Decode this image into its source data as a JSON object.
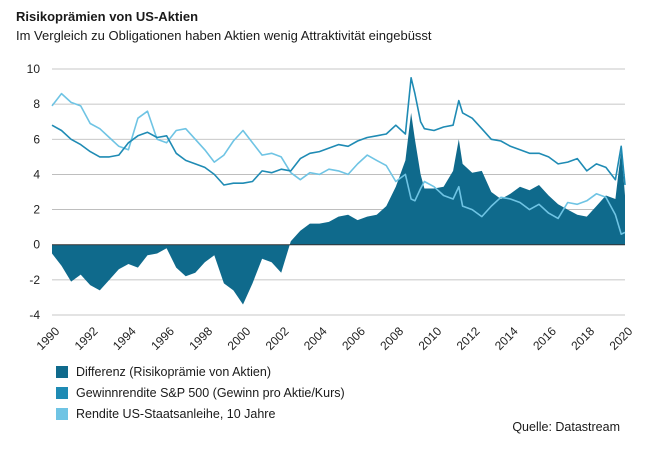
{
  "chart_data": {
    "type": "line",
    "title": "Risikoprämien von US-Aktien",
    "subtitle": "Im Vergleich zu Obligationen haben Aktien wenig Attraktivität eingebüsst",
    "xlim": [
      1990,
      2020
    ],
    "ylim": [
      -4,
      10
    ],
    "x_ticks": [
      "1990",
      "1992",
      "1994",
      "1996",
      "1998",
      "2000",
      "2002",
      "2004",
      "2006",
      "2008",
      "2010",
      "2012",
      "2014",
      "2016",
      "2018",
      "2020"
    ],
    "y_ticks": [
      "-4",
      "-2",
      "0",
      "2",
      "4",
      "6",
      "8",
      "10"
    ],
    "grid": true,
    "legend_position": "bottom-left",
    "colors": {
      "differenz": "#0f6a8c",
      "gewinnrendite": "#1f8bb4",
      "rendite": "#6fc4e4"
    },
    "x": [
      1990.0,
      1990.5,
      1991.0,
      1991.5,
      1992.0,
      1992.5,
      1993.0,
      1993.5,
      1994.0,
      1994.5,
      1995.0,
      1995.5,
      1996.0,
      1996.5,
      1997.0,
      1997.5,
      1998.0,
      1998.5,
      1999.0,
      1999.5,
      2000.0,
      2000.5,
      2001.0,
      2001.5,
      2002.0,
      2002.5,
      2003.0,
      2003.5,
      2004.0,
      2004.5,
      2005.0,
      2005.5,
      2006.0,
      2006.5,
      2007.0,
      2007.5,
      2008.0,
      2008.5,
      2008.8,
      2009.0,
      2009.3,
      2009.5,
      2010.0,
      2010.5,
      2011.0,
      2011.3,
      2011.5,
      2012.0,
      2012.5,
      2013.0,
      2013.5,
      2014.0,
      2014.5,
      2015.0,
      2015.5,
      2016.0,
      2016.5,
      2017.0,
      2017.5,
      2018.0,
      2018.5,
      2019.0,
      2019.5,
      2019.8,
      2020.0
    ],
    "series": [
      {
        "name": "Differenz (Risikoprämie von Aktien)",
        "values": [
          -0.5,
          -1.2,
          -2.1,
          -1.7,
          -2.3,
          -2.6,
          -2.0,
          -1.4,
          -1.1,
          -1.3,
          -0.6,
          -0.5,
          -0.2,
          -1.3,
          -1.8,
          -1.6,
          -1.0,
          -0.6,
          -2.2,
          -2.6,
          -3.4,
          -2.2,
          -0.8,
          -1.0,
          -1.6,
          0.2,
          0.8,
          1.2,
          1.2,
          1.3,
          1.6,
          1.7,
          1.4,
          1.6,
          1.7,
          2.2,
          3.3,
          4.8,
          7.5,
          6.0,
          4.0,
          3.2,
          3.2,
          3.3,
          4.2,
          6.0,
          4.6,
          4.1,
          4.2,
          3.0,
          2.6,
          2.9,
          3.3,
          3.1,
          3.4,
          2.8,
          2.3,
          2.0,
          1.7,
          1.6,
          2.2,
          2.8,
          2.6,
          5.4,
          2.8
        ]
      },
      {
        "name": "Gewinnrendite S&P 500 (Gewinn pro Aktie/Kurs)",
        "values": [
          6.8,
          6.5,
          6.0,
          5.7,
          5.3,
          5.0,
          5.0,
          5.1,
          5.8,
          6.2,
          6.4,
          6.1,
          6.2,
          5.2,
          4.8,
          4.6,
          4.4,
          4.0,
          3.4,
          3.5,
          3.5,
          3.6,
          4.2,
          4.1,
          4.3,
          4.2,
          4.9,
          5.2,
          5.3,
          5.5,
          5.7,
          5.6,
          5.9,
          6.1,
          6.2,
          6.3,
          6.8,
          6.3,
          9.5,
          8.6,
          7.0,
          6.6,
          6.5,
          6.7,
          6.8,
          8.2,
          7.5,
          7.2,
          6.6,
          6.0,
          5.9,
          5.6,
          5.4,
          5.2,
          5.2,
          5.0,
          4.6,
          4.7,
          4.9,
          4.2,
          4.6,
          4.4,
          3.7,
          5.6,
          3.4
        ]
      },
      {
        "name": "Rendite US-Staatsanleihe, 10 Jahre",
        "values": [
          7.9,
          8.6,
          8.1,
          7.9,
          6.9,
          6.6,
          6.1,
          5.6,
          5.4,
          7.2,
          7.6,
          6.0,
          5.8,
          6.5,
          6.6,
          6.0,
          5.4,
          4.7,
          5.1,
          5.9,
          6.5,
          5.8,
          5.1,
          5.2,
          5.0,
          4.1,
          3.7,
          4.1,
          4.0,
          4.3,
          4.2,
          4.0,
          4.6,
          5.1,
          4.8,
          4.5,
          3.6,
          4.0,
          2.6,
          2.5,
          3.2,
          3.6,
          3.3,
          2.8,
          2.6,
          3.3,
          2.2,
          2.0,
          1.6,
          2.2,
          2.7,
          2.6,
          2.4,
          2.0,
          2.3,
          1.8,
          1.5,
          2.4,
          2.3,
          2.5,
          2.9,
          2.7,
          1.7,
          0.6,
          0.7
        ]
      }
    ]
  },
  "legend": [
    {
      "label": "Differenz (Risikoprämie von Aktien)",
      "color": "#0f6a8c"
    },
    {
      "label": "Gewinnrendite S&P 500 (Gewinn pro Aktie/Kurs)",
      "color": "#1f8bb4"
    },
    {
      "label": "Rendite US-Staatsanleihe, 10 Jahre",
      "color": "#6fc4e4"
    }
  ],
  "source": "Quelle: Datastream"
}
